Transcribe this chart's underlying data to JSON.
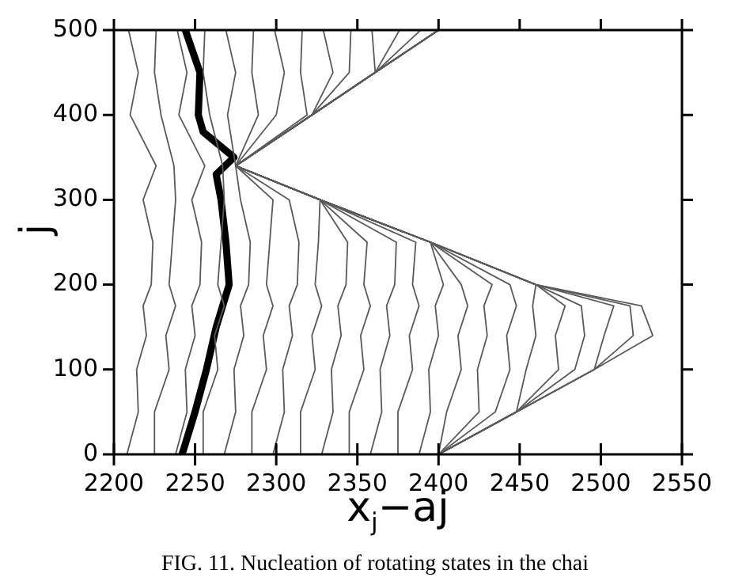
{
  "chart_data": {
    "type": "line",
    "xlabel": "x$_{j}$−aj",
    "ylabel": "j",
    "xlim": [
      2200,
      2550
    ],
    "xticks": [
      2200,
      2250,
      2300,
      2350,
      2400,
      2450,
      2500,
      2550
    ],
    "ylim": [
      0,
      500
    ],
    "yticks": [
      0,
      100,
      200,
      300,
      400,
      500
    ],
    "grid": false,
    "legend": false,
    "marker": "none",
    "line_style": "solid",
    "annotations": [
      "FIG. 11.   Nucleation of rotating states in the chai"
    ],
    "series": [
      {
        "color": "#5a5a5a",
        "x": [
          2208,
          2215,
          2214,
          2220,
          2218,
          2223,
          2224,
          2218,
          2226,
          2210,
          2215,
          2209
        ],
        "values": [
          0,
          50,
          100,
          140,
          175,
          200,
          250,
          300,
          340,
          400,
          450,
          500
        ]
      },
      {
        "color": "#5a5a5a",
        "x": [
          2225,
          2225,
          2234,
          2232,
          2238,
          2234,
          2236,
          2238,
          2237,
          2229,
          2225,
          2226
        ],
        "values": [
          0,
          50,
          100,
          140,
          175,
          200,
          250,
          300,
          340,
          400,
          450,
          500
        ]
      },
      {
        "color": "#5a5a5a",
        "x": [
          2238,
          2245,
          2244,
          2250,
          2248,
          2253,
          2254,
          2248,
          2256,
          2240,
          2245,
          2239
        ],
        "values": [
          0,
          50,
          100,
          140,
          175,
          200,
          250,
          300,
          340,
          400,
          450,
          500
        ]
      },
      {
        "color": "#5a5a5a",
        "x": [
          2255,
          2255,
          2264,
          2262,
          2268,
          2264,
          2266,
          2268,
          2267,
          2259,
          2255,
          2256
        ],
        "values": [
          0,
          50,
          100,
          140,
          175,
          200,
          250,
          300,
          340,
          400,
          450,
          500
        ]
      },
      {
        "color": "#5a5a5a",
        "x": [
          2268,
          2275,
          2274,
          2280,
          2278,
          2283,
          2284,
          2278,
          2275,
          2270,
          2275,
          2269
        ],
        "values": [
          0,
          50,
          100,
          140,
          175,
          200,
          250,
          300,
          340,
          400,
          450,
          500
        ]
      },
      {
        "color": "#5a5a5a",
        "x": [
          2285,
          2285,
          2294,
          2292,
          2298,
          2294,
          2296,
          2298,
          2275,
          2289,
          2285,
          2286
        ],
        "values": [
          0,
          50,
          100,
          140,
          175,
          200,
          250,
          300,
          340,
          400,
          450,
          500
        ]
      },
      {
        "color": "#5a5a5a",
        "x": [
          2298,
          2305,
          2304,
          2310,
          2308,
          2313,
          2314,
          2308,
          2275,
          2300,
          2305,
          2299
        ],
        "values": [
          0,
          50,
          100,
          140,
          175,
          200,
          250,
          300,
          340,
          400,
          450,
          500
        ]
      },
      {
        "color": "#5a5a5a",
        "x": [
          2315,
          2315,
          2324,
          2322,
          2328,
          2324,
          2326,
          2327,
          2275,
          2319,
          2315,
          2316
        ],
        "values": [
          0,
          50,
          100,
          140,
          175,
          200,
          250,
          300,
          340,
          400,
          450,
          500
        ]
      },
      {
        "color": "#5a5a5a",
        "x": [
          2328,
          2335,
          2334,
          2340,
          2338,
          2343,
          2344,
          2327,
          2275,
          2322,
          2335,
          2329
        ],
        "values": [
          0,
          50,
          100,
          140,
          175,
          200,
          250,
          300,
          340,
          400,
          450,
          500
        ]
      },
      {
        "color": "#5a5a5a",
        "x": [
          2345,
          2345,
          2354,
          2352,
          2358,
          2354,
          2356,
          2327,
          2275,
          2322,
          2345,
          2346
        ],
        "values": [
          0,
          50,
          100,
          140,
          175,
          200,
          250,
          300,
          340,
          400,
          450,
          500
        ]
      },
      {
        "color": "#5a5a5a",
        "x": [
          2358,
          2365,
          2364,
          2370,
          2368,
          2373,
          2374,
          2327,
          2275,
          2322,
          2361,
          2359
        ],
        "values": [
          0,
          50,
          100,
          140,
          175,
          200,
          250,
          300,
          340,
          400,
          450,
          500
        ]
      },
      {
        "color": "#5a5a5a",
        "x": [
          2375,
          2375,
          2384,
          2382,
          2388,
          2384,
          2386,
          2327,
          2275,
          2322,
          2361,
          2376
        ],
        "values": [
          0,
          50,
          100,
          140,
          175,
          200,
          250,
          300,
          340,
          400,
          450,
          500
        ]
      },
      {
        "color": "#5a5a5a",
        "x": [
          2388,
          2395,
          2394,
          2400,
          2398,
          2403,
          2395,
          2327,
          2275,
          2322,
          2361,
          2389
        ],
        "values": [
          0,
          50,
          100,
          140,
          175,
          200,
          250,
          300,
          340,
          400,
          450,
          500
        ]
      },
      {
        "color": "#5a5a5a",
        "x": [
          2400,
          2405,
          2414,
          2412,
          2418,
          2414,
          2395,
          2327,
          2275,
          2322,
          2361,
          2400
        ],
        "values": [
          0,
          50,
          100,
          140,
          175,
          200,
          250,
          300,
          340,
          400,
          450,
          500
        ]
      },
      {
        "color": "#5a5a5a",
        "x": [
          2400,
          2425,
          2424,
          2430,
          2428,
          2433,
          2395,
          2327,
          2275,
          2322,
          2361,
          2400
        ],
        "values": [
          0,
          50,
          100,
          140,
          175,
          200,
          250,
          300,
          340,
          400,
          450,
          500
        ]
      },
      {
        "color": "#5a5a5a",
        "x": [
          2400,
          2435,
          2444,
          2442,
          2448,
          2444,
          2395,
          2327,
          2275,
          2322,
          2361,
          2400
        ],
        "values": [
          0,
          50,
          100,
          140,
          175,
          200,
          250,
          300,
          340,
          400,
          450,
          500
        ]
      },
      {
        "color": "#5a5a5a",
        "x": [
          2400,
          2448,
          2454,
          2460,
          2458,
          2460,
          2395,
          2327,
          2275,
          2322,
          2361,
          2400
        ],
        "values": [
          0,
          50,
          100,
          140,
          175,
          200,
          250,
          300,
          340,
          400,
          450,
          500
        ]
      },
      {
        "color": "#5a5a5a",
        "x": [
          2400,
          2448,
          2474,
          2472,
          2478,
          2460,
          2395,
          2327,
          2275,
          2322,
          2361,
          2400
        ],
        "values": [
          0,
          50,
          100,
          140,
          175,
          200,
          250,
          300,
          340,
          400,
          450,
          500
        ]
      },
      {
        "color": "#5a5a5a",
        "x": [
          2400,
          2448,
          2484,
          2490,
          2488,
          2460,
          2395,
          2327,
          2275,
          2322,
          2361,
          2400
        ],
        "values": [
          0,
          50,
          100,
          140,
          175,
          200,
          250,
          300,
          340,
          400,
          450,
          500
        ]
      },
      {
        "color": "#5a5a5a",
        "x": [
          2400,
          2448,
          2496,
          2502,
          2508,
          2460,
          2395,
          2327,
          2275,
          2322,
          2361,
          2400
        ],
        "values": [
          0,
          50,
          100,
          140,
          175,
          200,
          250,
          300,
          340,
          400,
          450,
          500
        ]
      },
      {
        "color": "#5a5a5a",
        "x": [
          2400,
          2448,
          2496,
          2520,
          2518,
          2460,
          2395,
          2327,
          2275,
          2322,
          2361,
          2400
        ],
        "values": [
          0,
          50,
          100,
          140,
          175,
          200,
          250,
          300,
          340,
          400,
          450,
          500
        ]
      },
      {
        "color": "#5a5a5a",
        "x": [
          2400,
          2448,
          2496,
          2532,
          2525,
          2460,
          2395,
          2327,
          2275,
          2322,
          2361,
          2400
        ],
        "values": [
          0,
          50,
          100,
          140,
          175,
          200,
          250,
          300,
          340,
          400,
          450,
          500
        ]
      },
      {
        "color": "#000000",
        "x": [
          2242,
          2250,
          2257,
          2263,
          2271,
          2269,
          2266,
          2263,
          2274,
          2255,
          2252,
          2253,
          2244
        ],
        "values": [
          0,
          50,
          100,
          150,
          200,
          250,
          300,
          330,
          350,
          380,
          400,
          450,
          500
        ]
      }
    ]
  }
}
